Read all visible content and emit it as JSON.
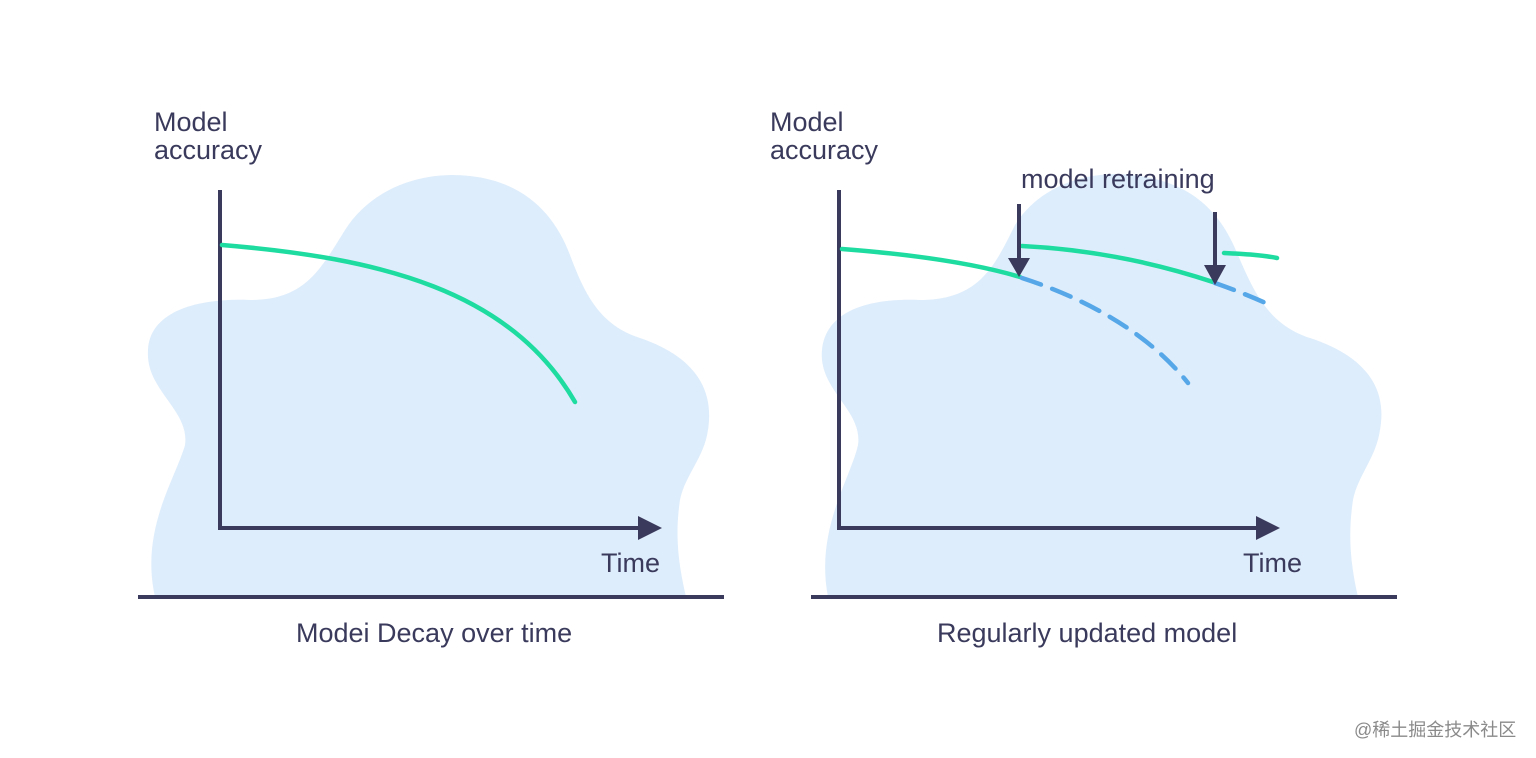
{
  "left_panel": {
    "y_axis_label_line1": "Model",
    "y_axis_label_line2": "accuracy",
    "x_axis_label": "Time",
    "caption": "Modei Decay over time"
  },
  "right_panel": {
    "y_axis_label_line1": "Model",
    "y_axis_label_line2": "accuracy",
    "x_axis_label": "Time",
    "caption": "Regularly updated model",
    "annotation": "model retraining"
  },
  "watermark": "@稀土掘金技术社区",
  "colors": {
    "axis": "#3a3a5c",
    "accuracy_line": "#1edba0",
    "decay_dashed": "#55a7e8",
    "blob": "#deedfb"
  }
}
